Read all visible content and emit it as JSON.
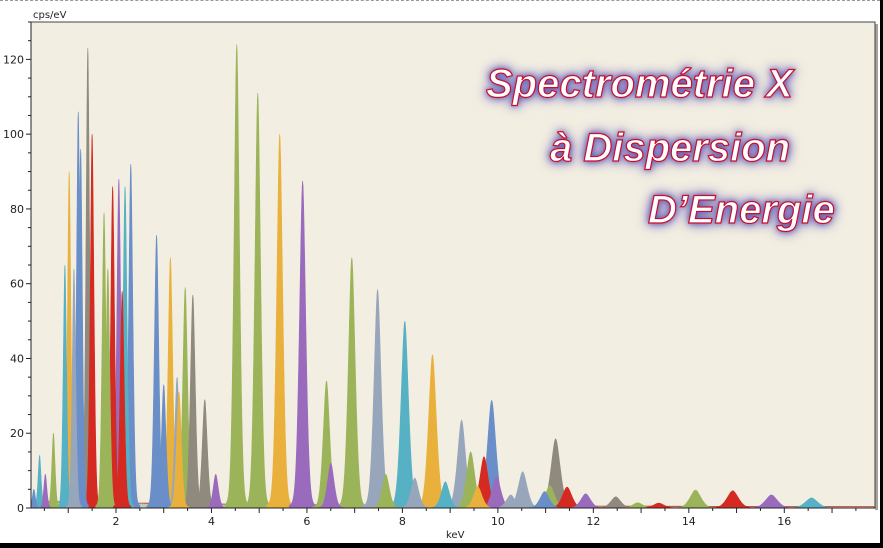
{
  "chart_data": {
    "type": "area",
    "title_overlay": [
      "Spectrométrie X",
      "à Dispersion",
      "D’Energie"
    ],
    "xlabel": "keV",
    "ylabel": "cps/eV",
    "xlim": [
      0.22,
      17.9
    ],
    "ylim": [
      0,
      130
    ],
    "x_ticks": [
      2,
      4,
      6,
      8,
      10,
      12,
      14,
      16
    ],
    "y_ticks": [
      0,
      20,
      40,
      60,
      80,
      100,
      120
    ],
    "grid": false,
    "legend": "none",
    "background": "#f2eee1",
    "colors": {
      "green": "#9bb45a",
      "blue": "#6a8fc8",
      "yellow": "#e9b13c",
      "purple": "#9a6bbd",
      "red": "#d42a22",
      "gray": "#8f8a7d",
      "cyan": "#56b1c4",
      "slate": "#98a6bb"
    },
    "peaks": [
      {
        "energy": 0.28,
        "height": 5,
        "color": "blue"
      },
      {
        "energy": 0.4,
        "height": 14,
        "color": "cyan"
      },
      {
        "energy": 0.52,
        "height": 9,
        "color": "purple"
      },
      {
        "energy": 0.69,
        "height": 20,
        "color": "green"
      },
      {
        "energy": 0.93,
        "height": 65,
        "color": "cyan"
      },
      {
        "energy": 1.02,
        "height": 90,
        "color": "yellow"
      },
      {
        "energy": 1.12,
        "height": 64,
        "color": "slate"
      },
      {
        "energy": 1.21,
        "height": 106,
        "color": "blue"
      },
      {
        "energy": 1.26,
        "height": 96,
        "color": "blue"
      },
      {
        "energy": 1.41,
        "height": 123,
        "color": "gray"
      },
      {
        "energy": 1.5,
        "height": 100,
        "color": "red"
      },
      {
        "energy": 1.75,
        "height": 79,
        "color": "green"
      },
      {
        "energy": 1.83,
        "height": 64,
        "color": "green"
      },
      {
        "energy": 1.93,
        "height": 86,
        "color": "red"
      },
      {
        "energy": 2.06,
        "height": 88,
        "color": "purple"
      },
      {
        "energy": 2.13,
        "height": 58,
        "color": "red"
      },
      {
        "energy": 2.19,
        "height": 86,
        "color": "cyan"
      },
      {
        "energy": 2.31,
        "height": 92,
        "color": "blue"
      },
      {
        "energy": 2.85,
        "height": 73,
        "color": "blue"
      },
      {
        "energy": 3.0,
        "height": 33,
        "color": "blue"
      },
      {
        "energy": 3.14,
        "height": 67,
        "color": "yellow"
      },
      {
        "energy": 3.28,
        "height": 35,
        "color": "slate"
      },
      {
        "energy": 3.32,
        "height": 31,
        "color": "yellow"
      },
      {
        "energy": 3.45,
        "height": 59,
        "color": "green"
      },
      {
        "energy": 3.61,
        "height": 57,
        "color": "gray"
      },
      {
        "energy": 3.86,
        "height": 29,
        "color": "gray"
      },
      {
        "energy": 4.09,
        "height": 9,
        "color": "purple"
      },
      {
        "energy": 4.53,
        "height": 124,
        "color": "green"
      },
      {
        "energy": 4.97,
        "height": 111,
        "color": "green"
      },
      {
        "energy": 5.43,
        "height": 100,
        "color": "yellow"
      },
      {
        "energy": 5.91,
        "height": 87.5,
        "color": "purple"
      },
      {
        "energy": 6.41,
        "height": 34,
        "color": "green"
      },
      {
        "energy": 6.5,
        "height": 12,
        "color": "purple"
      },
      {
        "energy": 6.94,
        "height": 67,
        "color": "green"
      },
      {
        "energy": 7.48,
        "height": 58.5,
        "color": "slate"
      },
      {
        "energy": 7.65,
        "height": 9,
        "color": "green"
      },
      {
        "energy": 8.05,
        "height": 50,
        "color": "cyan"
      },
      {
        "energy": 8.26,
        "height": 8,
        "color": "slate"
      },
      {
        "energy": 8.63,
        "height": 41,
        "color": "yellow"
      },
      {
        "energy": 8.9,
        "height": 7,
        "color": "cyan"
      },
      {
        "energy": 9.24,
        "height": 23.5,
        "color": "slate"
      },
      {
        "energy": 9.43,
        "height": 15,
        "color": "green"
      },
      {
        "energy": 9.58,
        "height": 5.7,
        "color": "yellow"
      },
      {
        "energy": 9.71,
        "height": 13.7,
        "color": "red"
      },
      {
        "energy": 9.87,
        "height": 28.8,
        "color": "blue"
      },
      {
        "energy": 9.97,
        "height": 8.4,
        "color": "purple"
      },
      {
        "energy": 10.27,
        "height": 3.5,
        "color": "slate"
      },
      {
        "energy": 10.52,
        "height": 9.7,
        "color": "slate"
      },
      {
        "energy": 10.98,
        "height": 4.4,
        "color": "blue"
      },
      {
        "energy": 11.09,
        "height": 6,
        "color": "green"
      },
      {
        "energy": 11.21,
        "height": 18.5,
        "color": "gray"
      },
      {
        "energy": 11.45,
        "height": 5.6,
        "color": "red"
      },
      {
        "energy": 11.84,
        "height": 3.8,
        "color": "purple"
      },
      {
        "energy": 12.47,
        "height": 3,
        "color": "gray"
      },
      {
        "energy": 12.93,
        "height": 1.4,
        "color": "green"
      },
      {
        "energy": 13.37,
        "height": 1.3,
        "color": "red"
      },
      {
        "energy": 14.14,
        "height": 4.8,
        "color": "green"
      },
      {
        "energy": 14.92,
        "height": 4.6,
        "color": "red"
      },
      {
        "energy": 15.73,
        "height": 3.5,
        "color": "purple"
      },
      {
        "energy": 16.57,
        "height": 2.7,
        "color": "cyan"
      }
    ]
  }
}
